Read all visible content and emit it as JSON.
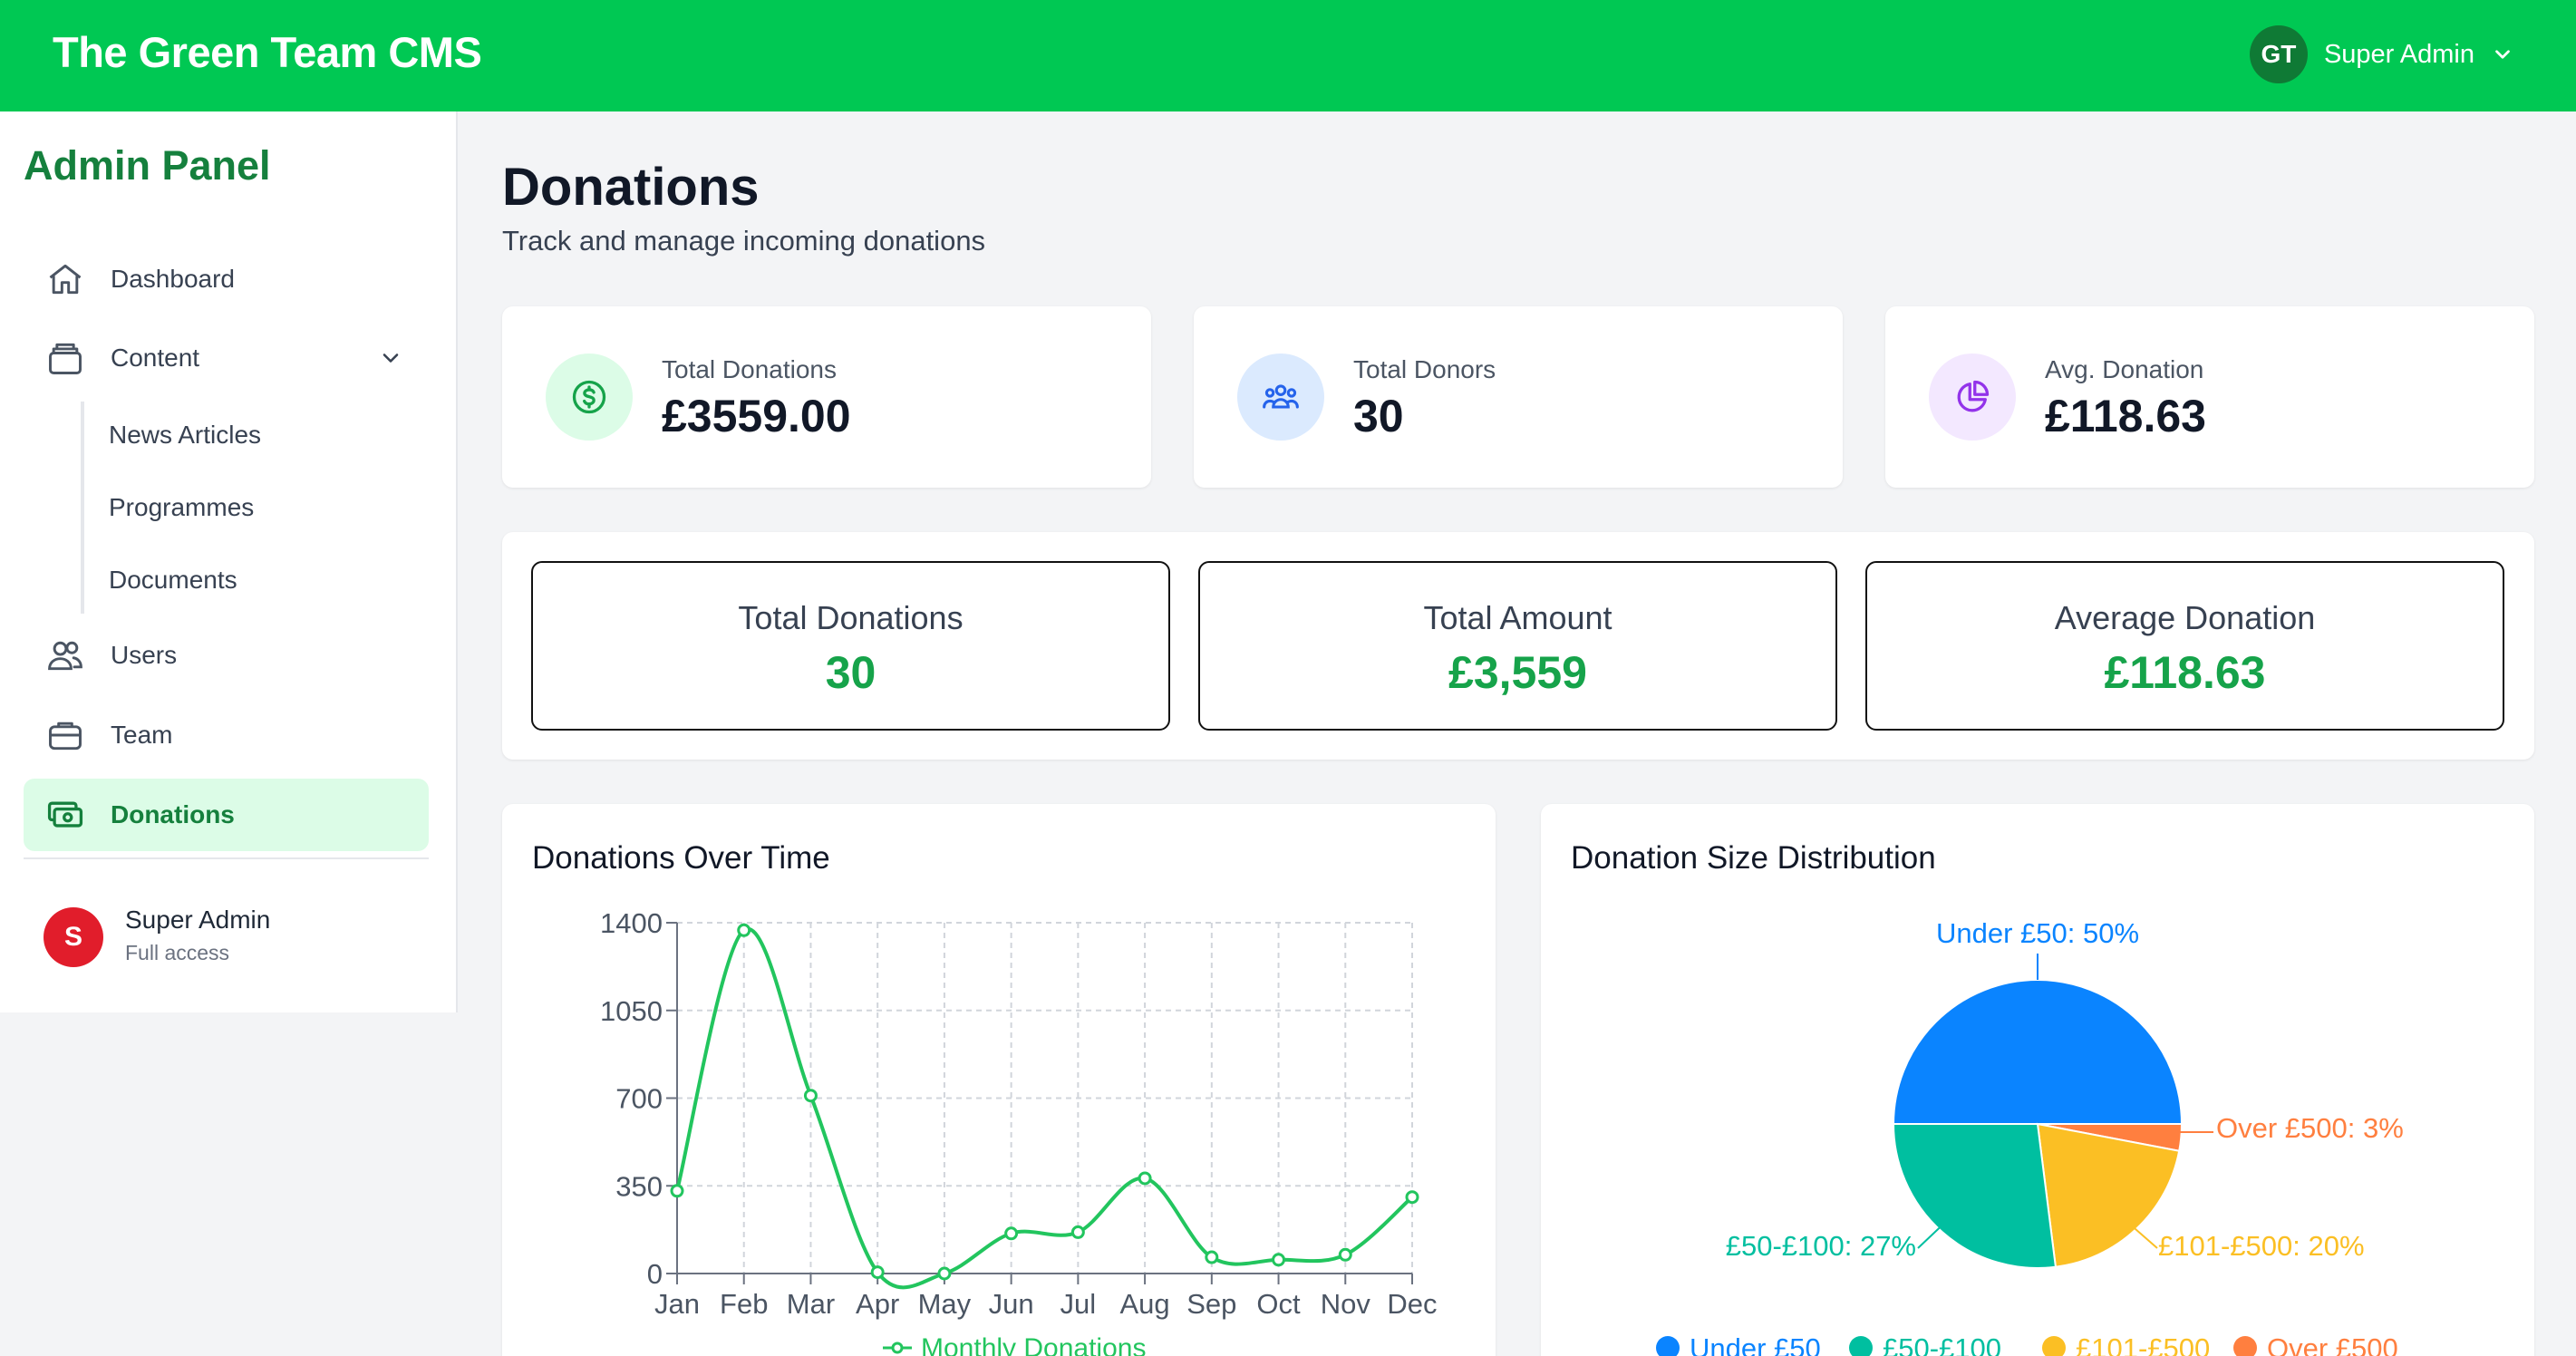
{
  "header": {
    "brand": "The Green Team CMS",
    "user_initials": "GT",
    "user_name": "Super Admin"
  },
  "sidebar": {
    "title": "Admin Panel",
    "items": [
      {
        "label": "Dashboard",
        "icon": "home-icon"
      },
      {
        "label": "Content",
        "icon": "layers-icon"
      },
      {
        "label": "Users",
        "icon": "users-icon"
      },
      {
        "label": "Team",
        "icon": "briefcase-icon"
      },
      {
        "label": "Donations",
        "icon": "cash-icon",
        "active": true
      }
    ],
    "content_children": [
      "News Articles",
      "Programmes",
      "Documents"
    ],
    "user": {
      "initial": "S",
      "name": "Super Admin",
      "role": "Full access"
    }
  },
  "page": {
    "title": "Donations",
    "subtitle": "Track and manage incoming donations"
  },
  "stats": [
    {
      "label": "Total Donations",
      "value": "£3559.00",
      "icon": "dollar-circle-icon",
      "color": "#16a34a"
    },
    {
      "label": "Total Donors",
      "value": "30",
      "icon": "people-icon",
      "color": "#2563eb"
    },
    {
      "label": "Avg. Donation",
      "value": "£118.63",
      "icon": "pie-chart-icon",
      "color": "#9333ea"
    }
  ],
  "summary": [
    {
      "label": "Total Donations",
      "value": "30"
    },
    {
      "label": "Total Amount",
      "value": "£3,559"
    },
    {
      "label": "Average Donation",
      "value": "£118.63"
    }
  ],
  "colors": {
    "brand_green": "#00c853",
    "accent_green": "#16a34a",
    "line_green": "#22c55e"
  },
  "chart_data": [
    {
      "type": "line",
      "title": "Donations Over Time",
      "categories": [
        "Jan",
        "Feb",
        "Mar",
        "Apr",
        "May",
        "Jun",
        "Jul",
        "Aug",
        "Sep",
        "Oct",
        "Nov",
        "Dec"
      ],
      "series": [
        {
          "name": "Monthly Donations",
          "values": [
            330,
            1370,
            710,
            5,
            0,
            160,
            165,
            380,
            65,
            55,
            75,
            305
          ],
          "color": "#22c55e"
        }
      ],
      "yticks": [
        "0",
        "350",
        "700",
        "1050",
        "1400"
      ],
      "ylim": [
        0,
        1400
      ],
      "grid": true,
      "legend": "bottom"
    },
    {
      "type": "pie",
      "title": "Donation Size Distribution",
      "slices": [
        {
          "label": "Under £50",
          "value": 50,
          "color": "#0a84ff",
          "callout": "Under £50: 50%"
        },
        {
          "label": "Over £500",
          "value": 3,
          "color": "#ff7f3f",
          "callout": "Over £500: 3%"
        },
        {
          "label": "£101-£500",
          "value": 20,
          "color": "#fbbf24",
          "callout": "£101-£500: 20%"
        },
        {
          "label": "£50-£100",
          "value": 27,
          "color": "#00bfa0",
          "callout": "£50-£100: 27%"
        }
      ],
      "legend_order": [
        "Under £50",
        "£50-£100",
        "£101-£500",
        "Over £500"
      ],
      "legend": "bottom"
    }
  ]
}
